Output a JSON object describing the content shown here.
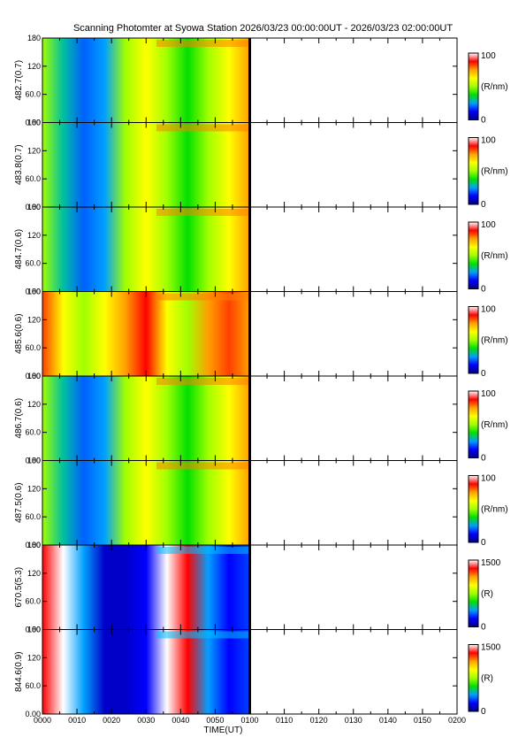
{
  "title": "Scanning Photomter at Syowa Station 2026/03/23 00:00:00UT - 2026/03/23 02:00:00UT",
  "chart_data": {
    "type": "heatmap",
    "x_axis": {
      "label": "TIME(UT)",
      "range": [
        "0000",
        "0200"
      ],
      "tick_labels": [
        "0000",
        "0010",
        "0020",
        "0030",
        "0040",
        "0050",
        "0100",
        "0110",
        "0120",
        "0130",
        "0140",
        "0150",
        "0200"
      ],
      "data_coverage_end": "0100"
    },
    "y_axis": {
      "range": [
        0,
        180
      ],
      "tick_labels": [
        "0.00",
        "60.0",
        "120",
        "180"
      ]
    },
    "colormap": [
      "#000080",
      "#0000ff",
      "#00a0ff",
      "#00e000",
      "#a0ff00",
      "#ffff00",
      "#ffa000",
      "#ff0000",
      "#ffffff"
    ],
    "panels": [
      {
        "channel": "482.7(0.7)",
        "colorbar_max": "100",
        "colorbar_min": "0",
        "unit": "(R/nm)"
      },
      {
        "channel": "483.8(0.7)",
        "colorbar_max": "100",
        "colorbar_min": "0",
        "unit": "(R/nm)"
      },
      {
        "channel": "484.7(0.6)",
        "colorbar_max": "100",
        "colorbar_min": "0",
        "unit": "(R/nm)"
      },
      {
        "channel": "485.6(0.6)",
        "colorbar_max": "100",
        "colorbar_min": "0",
        "unit": "(R/nm)"
      },
      {
        "channel": "486.7(0.6)",
        "colorbar_max": "100",
        "colorbar_min": "0",
        "unit": "(R/nm)"
      },
      {
        "channel": "487.5(0.6)",
        "colorbar_max": "100",
        "colorbar_min": "0",
        "unit": "(R/nm)"
      },
      {
        "channel": "670.5(5.3)",
        "colorbar_max": "1500",
        "colorbar_min": "0",
        "unit": "(R)"
      },
      {
        "channel": "844.6(0.9)",
        "colorbar_max": "1500",
        "colorbar_min": "0",
        "unit": "(R)"
      }
    ]
  }
}
